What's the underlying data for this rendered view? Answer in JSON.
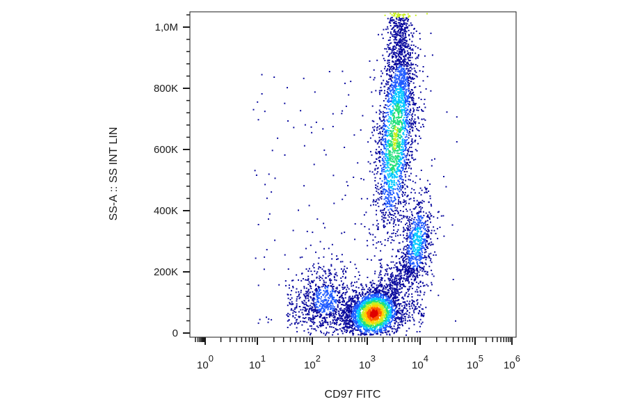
{
  "chart_data": {
    "type": "scatter",
    "subtype": "flow-cytometry-density-plot",
    "xlabel": "CD97 FITC",
    "ylabel": "SS-A :: SS INT LIN",
    "x_scale": "biexponential-log",
    "y_scale": "linear",
    "xlim": [
      0,
      1000000
    ],
    "ylim": [
      0,
      1050000
    ],
    "x_ticks": [
      {
        "base": "10",
        "exp": "0"
      },
      {
        "base": "10",
        "exp": "1"
      },
      {
        "base": "10",
        "exp": "2"
      },
      {
        "base": "10",
        "exp": "3"
      },
      {
        "base": "10",
        "exp": "4"
      },
      {
        "base": "10",
        "exp": "5"
      },
      {
        "base": "10",
        "exp": "6"
      }
    ],
    "y_ticks": [
      {
        "value": 0,
        "label": "0"
      },
      {
        "value": 200000,
        "label": "200K"
      },
      {
        "value": 400000,
        "label": "400K"
      },
      {
        "value": 600000,
        "label": "600K"
      },
      {
        "value": 800000,
        "label": "800K"
      },
      {
        "value": 1000000,
        "label": "1,0M"
      }
    ],
    "grid": false,
    "legend": "none",
    "density_colormap": [
      "#0a0a9e",
      "#1f5bff",
      "#00c8ff",
      "#22e07a",
      "#c8f020",
      "#ffd000",
      "#ff5a00",
      "#e00000"
    ],
    "populations": [
      {
        "x_center": 1300,
        "y_center": 65000,
        "relative_density": 1.0
      },
      {
        "x_center": 3300,
        "y_center": 640000,
        "relative_density": 0.55
      },
      {
        "x_center": 8500,
        "y_center": 300000,
        "relative_density": 0.35
      },
      {
        "x_center": 170,
        "y_center": 110000,
        "relative_density": 0.2
      }
    ]
  }
}
